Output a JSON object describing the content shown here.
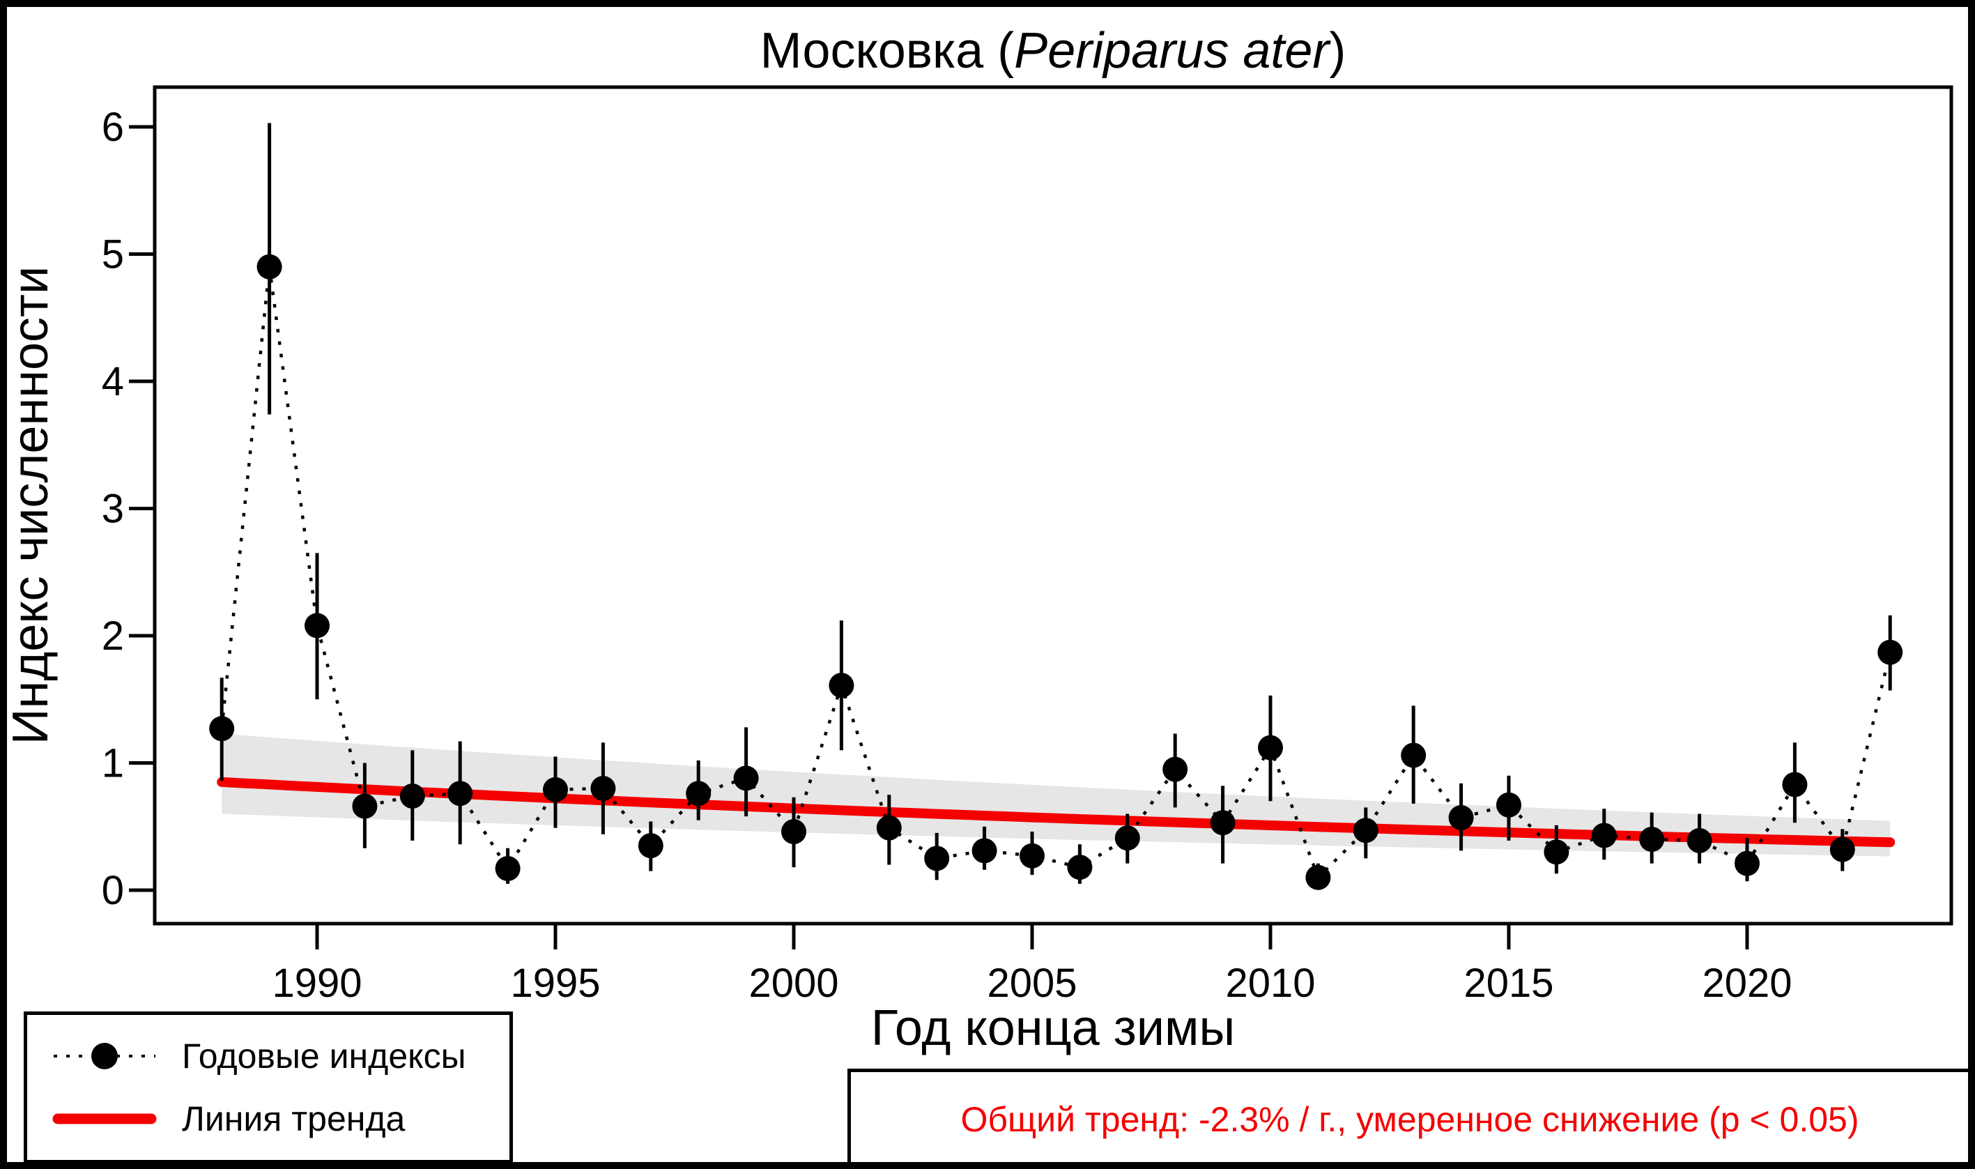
{
  "title": {
    "prefix": "Московка (",
    "species": "Periparus ater",
    "suffix": ")"
  },
  "axes": {
    "x": {
      "label": "Год конца зимы",
      "ticks": [
        1990,
        1995,
        2000,
        2005,
        2010,
        2015,
        2020
      ]
    },
    "y": {
      "label": "Индекс численности",
      "ticks": [
        0,
        1,
        2,
        3,
        4,
        5,
        6
      ]
    }
  },
  "legend": {
    "items": [
      {
        "label": "Годовые индексы",
        "marker": "dotted-line-with-point"
      },
      {
        "label": "Линия тренда",
        "marker": "red-line"
      }
    ]
  },
  "annotation": {
    "text": "Общий тренд: -2.3% / г., умеренное снижение (p < 0.05)",
    "color": "#f40000"
  },
  "colors": {
    "points": "#000000",
    "trend_line": "#f40000",
    "confidence_band": "#e6e6e6",
    "frame": "#000000"
  },
  "chart_data": {
    "type": "line",
    "title": "Московка (Periparus ater)",
    "xlabel": "Год конца зимы",
    "ylabel": "Индекс численности",
    "xlim": [
      1986.6,
      2024.3
    ],
    "ylim": [
      -0.26,
      6.31
    ],
    "x_ticks": [
      1990,
      1995,
      2000,
      2005,
      2010,
      2015,
      2020
    ],
    "y_ticks": [
      0,
      1,
      2,
      3,
      4,
      5,
      6
    ],
    "grid": false,
    "legend_position": "bottom-left",
    "series": [
      {
        "name": "Годовые индексы",
        "style": "dotted line with black points and error bars",
        "x": [
          1988,
          1989,
          1990,
          1991,
          1992,
          1993,
          1994,
          1995,
          1996,
          1997,
          1998,
          1999,
          2000,
          2001,
          2002,
          2003,
          2004,
          2005,
          2006,
          2007,
          2008,
          2009,
          2010,
          2011,
          2012,
          2013,
          2014,
          2015,
          2016,
          2017,
          2018,
          2019,
          2020,
          2021,
          2022,
          2023
        ],
        "y": [
          1.27,
          4.9,
          2.08,
          0.66,
          0.74,
          0.76,
          0.17,
          0.79,
          0.8,
          0.35,
          0.76,
          0.88,
          0.46,
          1.61,
          0.49,
          0.25,
          0.31,
          0.27,
          0.18,
          0.41,
          0.95,
          0.53,
          1.12,
          0.1,
          0.47,
          1.06,
          0.57,
          0.67,
          0.3,
          0.43,
          0.4,
          0.39,
          0.21,
          0.83,
          0.32,
          1.87
        ],
        "ci_low": [
          0.86,
          3.74,
          1.5,
          0.33,
          0.39,
          0.36,
          0.05,
          0.49,
          0.44,
          0.15,
          0.55,
          0.58,
          0.18,
          1.1,
          0.2,
          0.08,
          0.16,
          0.12,
          0.05,
          0.21,
          0.65,
          0.21,
          0.7,
          0.01,
          0.25,
          0.68,
          0.31,
          0.39,
          0.13,
          0.24,
          0.21,
          0.21,
          0.07,
          0.53,
          0.15,
          1.57
        ],
        "ci_high": [
          1.67,
          6.03,
          2.65,
          1.0,
          1.1,
          1.17,
          0.33,
          1.05,
          1.16,
          0.54,
          1.02,
          1.28,
          0.73,
          2.12,
          0.75,
          0.45,
          0.5,
          0.46,
          0.36,
          0.6,
          1.23,
          0.82,
          1.53,
          0.21,
          0.65,
          1.45,
          0.84,
          0.9,
          0.51,
          0.64,
          0.61,
          0.6,
          0.41,
          1.16,
          0.48,
          2.16
        ]
      }
    ],
    "trend": {
      "name": "Линия тренда",
      "start_year": 1988,
      "end_year": 2023,
      "start_value": 0.85,
      "end_value": 0.38,
      "annual_change_pct": -2.3,
      "significance": "p < 0.05",
      "classification": "умеренное снижение",
      "band_upper_ratio": 1.447,
      "band_lower_ratio": 0.706
    }
  }
}
